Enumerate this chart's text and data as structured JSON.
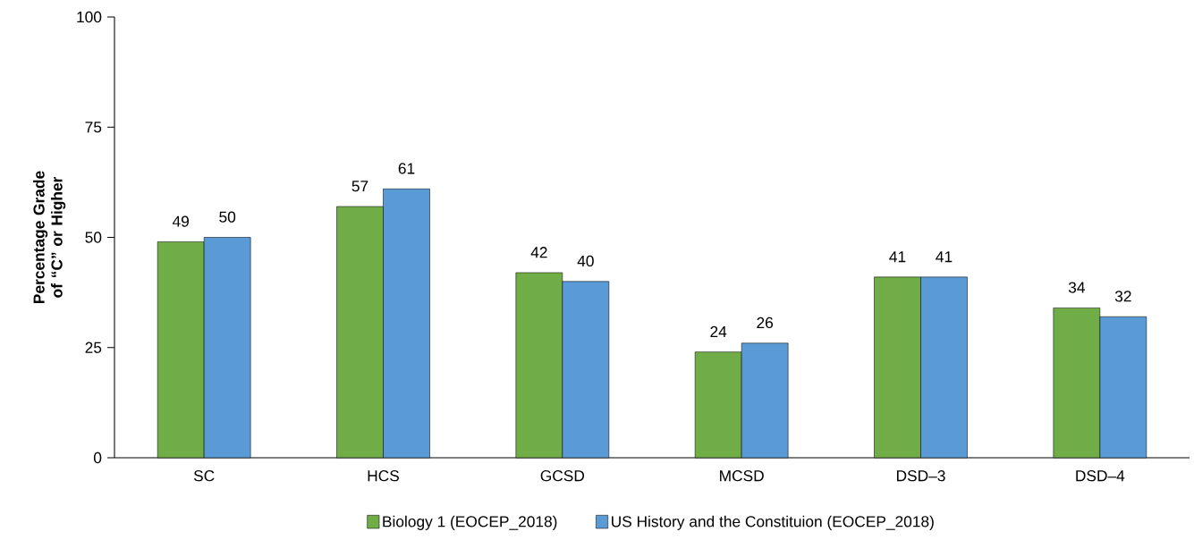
{
  "chart_data": {
    "type": "bar",
    "categories": [
      "SC",
      "HCS",
      "GCSD",
      "MCSD",
      "DSD–3",
      "DSD–4"
    ],
    "series": [
      {
        "name": "Biology 1 (EOCEP_2018)",
        "color": "#70ad47",
        "values": [
          49,
          57,
          42,
          24,
          41,
          34
        ]
      },
      {
        "name": "US History and the Constituion (EOCEP_2018)",
        "color": "#5b9bd5",
        "values": [
          50,
          61,
          40,
          26,
          41,
          32
        ]
      }
    ],
    "ylabel": "Percentage Grade of “C” or Higher",
    "ylim": [
      0,
      100
    ],
    "yticks": [
      0,
      25,
      50,
      75,
      100
    ],
    "data_labels": true,
    "legend": "bottom"
  }
}
